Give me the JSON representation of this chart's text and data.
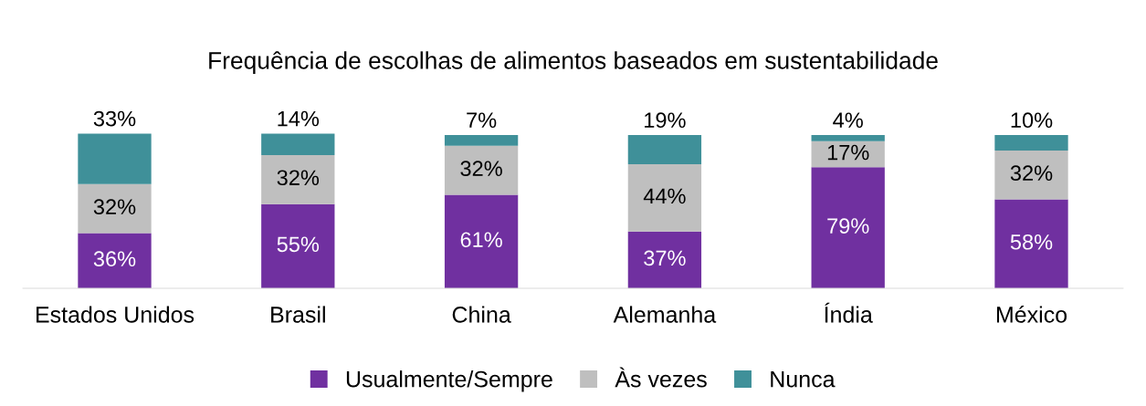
{
  "chart_data": {
    "type": "bar",
    "title": "Frequência de escolhas de alimentos baseados em sustentabilidade",
    "categories": [
      "Estados Unidos",
      "Brasil",
      "China",
      "Alemanha",
      "Índia",
      "México"
    ],
    "stacked": true,
    "legend": "bottom",
    "grid": false,
    "series": [
      {
        "name": "Usualmente/Sempre",
        "color": "#7030a0",
        "values": [
          36,
          55,
          61,
          37,
          79,
          58
        ],
        "value_labels": [
          "36%",
          "55%",
          "61%",
          "37%",
          "79%",
          "58%"
        ]
      },
      {
        "name": "Às vezes",
        "color": "#bfbfbf",
        "values": [
          32,
          32,
          32,
          44,
          17,
          32
        ],
        "value_labels": [
          "32%",
          "32%",
          "32%",
          "44%",
          "17%",
          "32%"
        ]
      },
      {
        "name": "Nunca",
        "color": "#3f9099",
        "values": [
          33,
          14,
          7,
          19,
          4,
          10
        ],
        "value_labels": [
          "33%",
          "14%",
          "7%",
          "19%",
          "4%",
          "10%"
        ]
      }
    ]
  }
}
